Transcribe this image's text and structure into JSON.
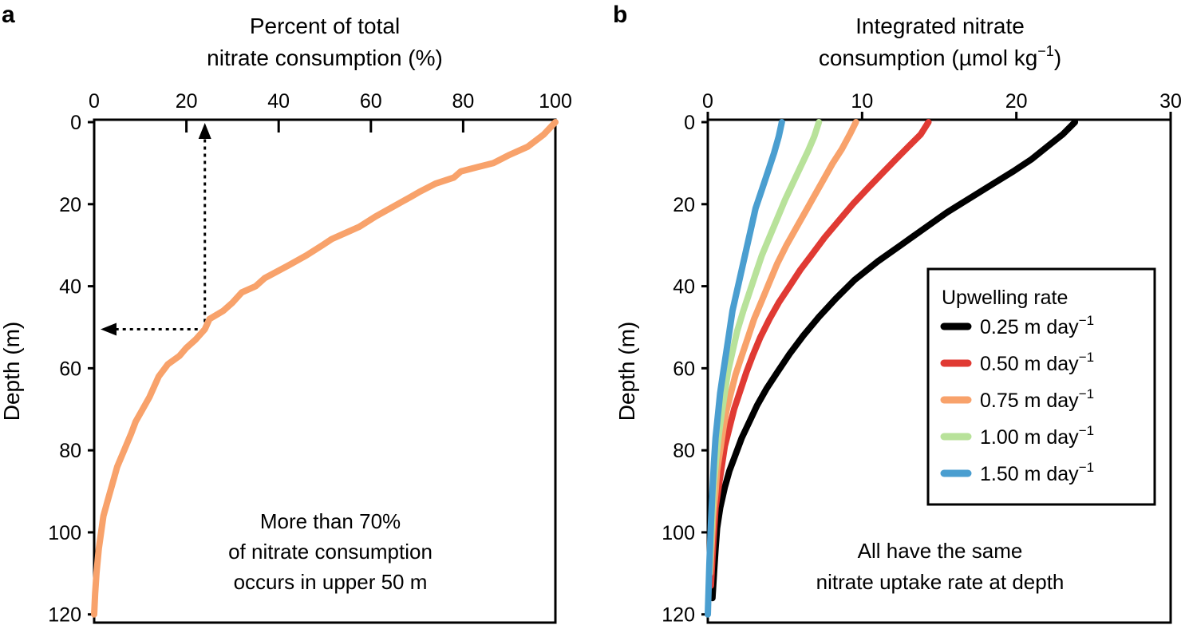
{
  "chart_data": [
    {
      "type": "line",
      "panel": "a",
      "title": "",
      "xlabel_line1": "Percent of total",
      "xlabel_line2": "nitrate consumption (%)",
      "ylabel": "Depth (m)",
      "xlim": [
        0,
        100
      ],
      "ylim": [
        0,
        122
      ],
      "xticks": [
        0,
        20,
        40,
        60,
        80,
        100
      ],
      "yticks": [
        0,
        20,
        40,
        60,
        80,
        100,
        120
      ],
      "y_inverted": true,
      "series": [
        {
          "name": "Percent of total nitrate consumption",
          "color": "#f8a26b",
          "x": [
            100,
            97.5,
            94,
            90,
            86.5,
            83,
            79.5,
            78,
            74,
            70.5,
            69,
            65,
            61,
            57.5,
            54.5,
            51.5,
            49.5,
            46,
            42,
            37,
            35,
            32,
            30,
            28,
            25,
            24,
            22,
            20,
            18.5,
            16,
            14,
            13,
            12,
            10.5,
            9,
            8,
            6.5,
            5,
            4,
            3,
            2,
            1.5,
            1,
            0.5,
            0.2,
            0
          ],
          "y": [
            0,
            3,
            6,
            8,
            10,
            11,
            12,
            13.5,
            15,
            17,
            18,
            20.5,
            23,
            25.5,
            27,
            28.5,
            30,
            32.5,
            35,
            38,
            40,
            41.5,
            44,
            46,
            48,
            50.5,
            53,
            55,
            57,
            59,
            62,
            64.5,
            67,
            70,
            73,
            76,
            80,
            84,
            88,
            92,
            96,
            100,
            104,
            110,
            115,
            120
          ]
        }
      ],
      "annotations": [
        "More than 70%",
        "of nitrate consumption",
        "occurs in upper 50 m"
      ],
      "guide_point": {
        "x": 24,
        "y": 50.5
      }
    },
    {
      "type": "line",
      "panel": "b",
      "title": "",
      "xlabel_line1": "Integrated nitrate",
      "xlabel_line2": "consumption (µmol kg",
      "xlabel_sup": "−1",
      "xlabel_close": ")",
      "ylabel": "Depth (m)",
      "xlim": [
        0,
        30
      ],
      "ylim": [
        0,
        122
      ],
      "xticks": [
        0,
        10,
        20,
        30
      ],
      "yticks": [
        0,
        20,
        40,
        60,
        80,
        100,
        120
      ],
      "y_inverted": true,
      "legend_title": "Upwelling rate",
      "legend_placement": "right",
      "series": [
        {
          "name": "0.25 m day",
          "name_sup": "−1",
          "color": "#000000",
          "x": [
            23.8,
            23,
            22,
            21,
            19.8,
            18.5,
            17,
            15.5,
            14,
            12.5,
            11,
            9.5,
            8.3,
            7.2,
            6.2,
            5.3,
            4.5,
            3.8,
            3.2,
            2.7,
            2.2,
            1.8,
            1.4,
            1.1,
            0.8,
            0.6,
            0.5,
            0.4,
            0.3
          ],
          "y": [
            0,
            3,
            6,
            9,
            12,
            15,
            18.5,
            22,
            26,
            30,
            34,
            38.5,
            43,
            47.5,
            52,
            56.5,
            61,
            65,
            69,
            73,
            77,
            81,
            85,
            89,
            94,
            99,
            104,
            110,
            116
          ]
        },
        {
          "name": "0.50 m day",
          "name_sup": "−1",
          "color": "#e03a33",
          "x": [
            14.3,
            13.8,
            13,
            12.2,
            11.3,
            10.4,
            9.4,
            8.5,
            7.6,
            6.8,
            6,
            5.3,
            4.6,
            4,
            3.4,
            2.9,
            2.5,
            2.1,
            1.7,
            1.4,
            1.1,
            0.9,
            0.7,
            0.5,
            0.4,
            0.3,
            0.2
          ],
          "y": [
            0,
            3,
            6,
            9,
            12.5,
            16,
            20,
            24,
            28,
            32,
            36,
            40,
            44,
            48,
            52.5,
            57,
            61,
            65.5,
            70,
            74.5,
            79,
            84,
            89,
            94,
            100,
            106,
            113
          ]
        },
        {
          "name": "0.75 m day",
          "name_sup": "−1",
          "color": "#f8a26b",
          "x": [
            9.6,
            9.2,
            8.7,
            8.1,
            7.5,
            6.9,
            6.3,
            5.7,
            5.1,
            4.5,
            4,
            3.5,
            3,
            2.6,
            2.2,
            1.8,
            1.5,
            1.2,
            1,
            0.8,
            0.6,
            0.5,
            0.35,
            0.25,
            0.15
          ],
          "y": [
            0,
            3,
            6.5,
            10,
            14,
            18,
            22,
            26,
            30,
            34.5,
            39,
            43.5,
            48,
            52.5,
            57,
            61.5,
            66,
            70.5,
            75,
            80,
            85,
            90,
            96,
            103,
            110
          ]
        },
        {
          "name": "1.00 m day",
          "name_sup": "−1",
          "color": "#b8e29a",
          "x": [
            7.2,
            6.9,
            6.5,
            6,
            5.5,
            5,
            4.5,
            4,
            3.5,
            3.1,
            2.7,
            2.3,
            1.9,
            1.6,
            1.3,
            1.1,
            0.9,
            0.7,
            0.55,
            0.4,
            0.3,
            0.2,
            0.1
          ],
          "y": [
            0,
            3.5,
            7,
            11,
            15,
            19,
            23.5,
            28,
            32.5,
            37,
            41.5,
            46,
            51,
            56,
            61,
            66,
            71,
            76.5,
            82,
            88,
            95,
            102,
            110
          ]
        },
        {
          "name": "1.50 m day",
          "name_sup": "−1",
          "color": "#4a9ed0",
          "x": [
            4.8,
            4.6,
            4.3,
            3.9,
            3.5,
            3.1,
            2.8,
            2.5,
            2.2,
            1.9,
            1.6,
            1.4,
            1.2,
            1,
            0.8,
            0.65,
            0.5,
            0.4,
            0.3,
            0.2,
            0.1,
            0
          ],
          "y": [
            0,
            3.5,
            7.5,
            12,
            16.5,
            21,
            26,
            31,
            36,
            41,
            46,
            51,
            56,
            61,
            66,
            71.5,
            77,
            83,
            90,
            98,
            108,
            120
          ]
        }
      ],
      "annotations": [
        "All have the same",
        "nitrate uptake rate at depth"
      ]
    }
  ],
  "panel_a_label": "a",
  "panel_b_label": "b"
}
